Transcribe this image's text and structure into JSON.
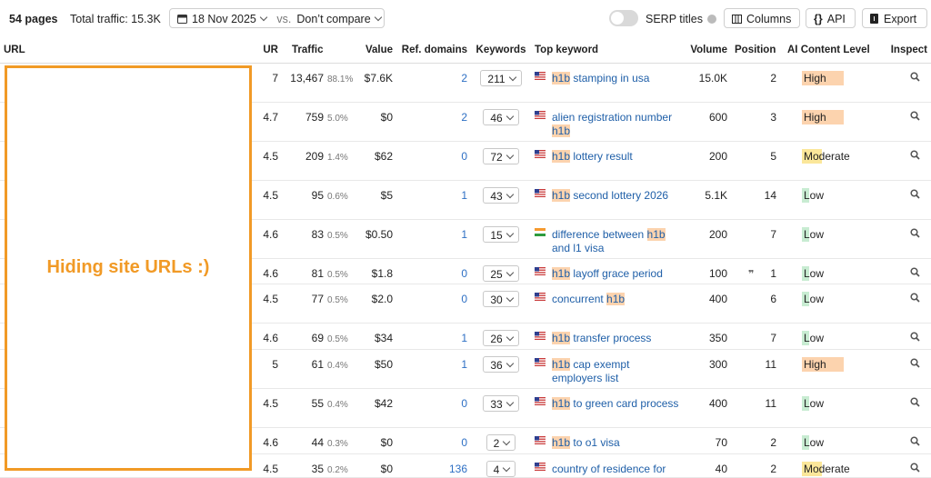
{
  "toolbar": {
    "pages": "54 pages",
    "traffic": "Total traffic: 15.3K",
    "date": "18 Nov 2025",
    "vs": "vs.",
    "compare": "Don’t compare",
    "serp": "SERP titles",
    "columns": "Columns",
    "api": "API",
    "export": "Export"
  },
  "overlay": "Hiding site URLs :)",
  "table": {
    "headers": [
      "URL",
      "UR",
      "Traffic",
      "Value",
      "Ref. domains",
      "Keywords",
      "Top keyword",
      "Volume",
      "Position",
      "AI Content Level",
      "Inspect"
    ],
    "rows": [
      {
        "ur": "7",
        "traffic": "13,467",
        "share": "88.1%",
        "value": "$7.6K",
        "ref": "2",
        "keywords": "211",
        "flag": "us",
        "keyword": [
          "h1b",
          " stamping in usa"
        ],
        "keyword_hl": [
          0
        ],
        "volume": "15.0K",
        "position": "2",
        "ai": "High",
        "ai_color": "#fcd3ae"
      },
      {
        "ur": "4.7",
        "traffic": "759",
        "share": "5.0%",
        "value": "$0",
        "ref": "2",
        "keywords": "46",
        "flag": "us",
        "keyword": [
          "alien registration number ",
          "h1b"
        ],
        "keyword_hl": [
          1
        ],
        "volume": "600",
        "position": "3",
        "ai": "High",
        "ai_color": "#fcd3ae"
      },
      {
        "ur": "4.5",
        "traffic": "209",
        "share": "1.4%",
        "value": "$62",
        "ref": "0",
        "keywords": "72",
        "flag": "us",
        "keyword": [
          "h1b",
          " lottery result"
        ],
        "keyword_hl": [
          0
        ],
        "volume": "200",
        "position": "5",
        "ai": "Moderate",
        "ai_color": "#fbe79a"
      },
      {
        "ur": "4.5",
        "traffic": "95",
        "share": "0.6%",
        "value": "$5",
        "ref": "1",
        "keywords": "43",
        "flag": "us",
        "keyword": [
          "h1b",
          " second lottery 2026"
        ],
        "keyword_hl": [
          0
        ],
        "volume": "5.1K",
        "position": "14",
        "ai": "Low",
        "ai_color": "#c8ecd2"
      },
      {
        "ur": "4.6",
        "traffic": "83",
        "share": "0.5%",
        "value": "$0.50",
        "ref": "1",
        "keywords": "15",
        "flag": "in",
        "keyword": [
          "difference between ",
          "h1b",
          " and l1 visa"
        ],
        "keyword_hl": [
          1
        ],
        "volume": "200",
        "position": "7",
        "ai": "Low",
        "ai_color": "#c8ecd2"
      },
      {
        "ur": "4.6",
        "traffic": "81",
        "share": "0.5%",
        "value": "$1.8",
        "ref": "0",
        "keywords": "25",
        "flag": "us",
        "keyword": [
          "h1b",
          " layoff grace period"
        ],
        "keyword_hl": [
          0
        ],
        "volume": "100",
        "position": "1",
        "position_quote": true,
        "ai": "Low",
        "ai_color": "#c8ecd2"
      },
      {
        "ur": "4.5",
        "traffic": "77",
        "share": "0.5%",
        "value": "$2.0",
        "ref": "0",
        "keywords": "30",
        "flag": "us",
        "keyword": [
          "concurrent ",
          "h1b"
        ],
        "keyword_hl": [
          1
        ],
        "volume": "400",
        "position": "6",
        "ai": "Low",
        "ai_color": "#c8ecd2"
      },
      {
        "ur": "4.6",
        "traffic": "69",
        "share": "0.5%",
        "value": "$34",
        "ref": "1",
        "keywords": "26",
        "flag": "us",
        "keyword": [
          "h1b",
          " transfer process"
        ],
        "keyword_hl": [
          0
        ],
        "volume": "350",
        "position": "7",
        "ai": "Low",
        "ai_color": "#c8ecd2"
      },
      {
        "ur": "5",
        "traffic": "61",
        "share": "0.4%",
        "value": "$50",
        "ref": "1",
        "keywords": "36",
        "flag": "us",
        "keyword": [
          "h1b",
          " cap exempt employers list"
        ],
        "keyword_hl": [
          0
        ],
        "volume": "300",
        "position": "11",
        "ai": "High",
        "ai_color": "#fcd3ae"
      },
      {
        "ur": "4.5",
        "traffic": "55",
        "share": "0.4%",
        "value": "$42",
        "ref": "0",
        "keywords": "33",
        "flag": "us",
        "keyword": [
          "h1b",
          " to green card process"
        ],
        "keyword_hl": [
          0
        ],
        "volume": "400",
        "position": "11",
        "ai": "Low",
        "ai_color": "#c8ecd2"
      },
      {
        "ur": "4.6",
        "traffic": "44",
        "share": "0.3%",
        "value": "$0",
        "ref": "0",
        "keywords": "2",
        "flag": "us",
        "keyword": [
          "h1b",
          " to o1 visa"
        ],
        "keyword_hl": [
          0
        ],
        "volume": "70",
        "position": "2",
        "ai": "Low",
        "ai_color": "#c8ecd2"
      },
      {
        "ur": "4.5",
        "traffic": "35",
        "share": "0.2%",
        "value": "$0",
        "ref": "136",
        "keywords": "4",
        "flag": "us",
        "keyword": [
          "country of residence for"
        ],
        "keyword_hl": [],
        "volume": "40",
        "position": "2",
        "ai": "Moderate",
        "ai_color": "#fbe79a"
      }
    ]
  }
}
